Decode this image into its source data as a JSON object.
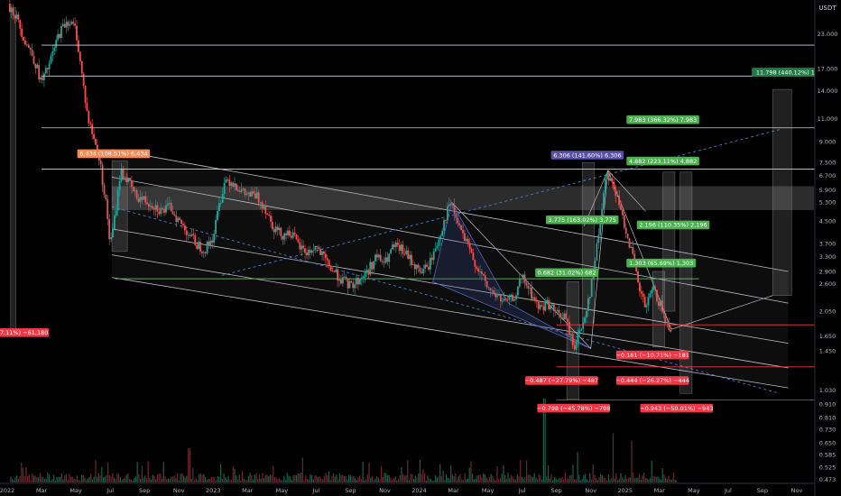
{
  "chart_data": {
    "type": "candlestick",
    "currency_label": "USDT",
    "y_scale": "log",
    "ylim": [
      0.46,
      30
    ],
    "y_ticks": [
      {
        "v": 23,
        "t": "23.000"
      },
      {
        "v": 17,
        "t": "17.000"
      },
      {
        "v": 14,
        "t": "14.000"
      },
      {
        "v": 11,
        "t": "11.000"
      },
      {
        "v": 9,
        "t": "9.000"
      },
      {
        "v": 7.5,
        "t": "7.500"
      },
      {
        "v": 6.7,
        "t": "6.700"
      },
      {
        "v": 5.9,
        "t": "5.900"
      },
      {
        "v": 5.3,
        "t": "5.300"
      },
      {
        "v": 4.5,
        "t": "4.500"
      },
      {
        "v": 3.7,
        "t": "3.700"
      },
      {
        "v": 3.3,
        "t": "3.300"
      },
      {
        "v": 2.9,
        "t": "2.900"
      },
      {
        "v": 2.6,
        "t": "2.600"
      },
      {
        "v": 2.05,
        "t": "2.050"
      },
      {
        "v": 1.65,
        "t": "1.650"
      },
      {
        "v": 1.45,
        "t": "1.450"
      },
      {
        "v": 1.03,
        "t": "1.030"
      },
      {
        "v": 0.91,
        "t": "0.910"
      },
      {
        "v": 0.81,
        "t": "0.810"
      },
      {
        "v": 0.73,
        "t": "0.730"
      },
      {
        "v": 0.65,
        "t": "0.650"
      },
      {
        "v": 0.585,
        "t": "0.585"
      },
      {
        "v": 0.525,
        "t": "0.525"
      },
      {
        "v": 0.473,
        "t": "0.473"
      }
    ],
    "x_ticks": [
      {
        "t": "2022",
        "m": 0
      },
      {
        "t": "Mar",
        "m": 2
      },
      {
        "t": "May",
        "m": 4
      },
      {
        "t": "Jul",
        "m": 6
      },
      {
        "t": "Sep",
        "m": 8
      },
      {
        "t": "Nov",
        "m": 10
      },
      {
        "t": "2023",
        "m": 12
      },
      {
        "t": "Mar",
        "m": 14
      },
      {
        "t": "May",
        "m": 16
      },
      {
        "t": "Jul",
        "m": 18
      },
      {
        "t": "Sep",
        "m": 20
      },
      {
        "t": "Nov",
        "m": 22
      },
      {
        "t": "2024",
        "m": 24
      },
      {
        "t": "Mar",
        "m": 26
      },
      {
        "t": "May",
        "m": 28
      },
      {
        "t": "Jul",
        "m": 30
      },
      {
        "t": "Sep",
        "m": 32
      },
      {
        "t": "Nov",
        "m": 34
      },
      {
        "t": "2025",
        "m": 36
      },
      {
        "t": "Mar",
        "m": 38
      },
      {
        "t": "May",
        "m": 40
      },
      {
        "t": "Jul",
        "m": 42
      },
      {
        "t": "Sep",
        "m": 44
      },
      {
        "t": "Nov",
        "m": 46
      }
    ],
    "price_path": [
      {
        "m": 0.0,
        "p": 30
      },
      {
        "m": 0.5,
        "p": 27
      },
      {
        "m": 1.0,
        "p": 22
      },
      {
        "m": 1.5,
        "p": 19
      },
      {
        "m": 2.0,
        "p": 15
      },
      {
        "m": 2.5,
        "p": 18
      },
      {
        "m": 3.0,
        "p": 23
      },
      {
        "m": 3.5,
        "p": 26
      },
      {
        "m": 4.0,
        "p": 24
      },
      {
        "m": 4.3,
        "p": 17
      },
      {
        "m": 4.7,
        "p": 11
      },
      {
        "m": 5.0,
        "p": 9.5
      },
      {
        "m": 5.4,
        "p": 7.5
      },
      {
        "m": 5.8,
        "p": 5.0
      },
      {
        "m": 6.0,
        "p": 3.6
      },
      {
        "m": 6.3,
        "p": 4.8
      },
      {
        "m": 6.6,
        "p": 7.0
      },
      {
        "m": 7.0,
        "p": 6.4
      },
      {
        "m": 7.5,
        "p": 5.6
      },
      {
        "m": 8.0,
        "p": 5.4
      },
      {
        "m": 8.5,
        "p": 5.2
      },
      {
        "m": 9.0,
        "p": 4.9
      },
      {
        "m": 9.5,
        "p": 5.1
      },
      {
        "m": 10.0,
        "p": 4.5
      },
      {
        "m": 10.5,
        "p": 4.1
      },
      {
        "m": 11.0,
        "p": 3.7
      },
      {
        "m": 11.5,
        "p": 3.5
      },
      {
        "m": 12.0,
        "p": 3.9
      },
      {
        "m": 12.3,
        "p": 5.0
      },
      {
        "m": 12.7,
        "p": 6.5
      },
      {
        "m": 13.2,
        "p": 6.3
      },
      {
        "m": 13.8,
        "p": 5.7
      },
      {
        "m": 14.5,
        "p": 5.6
      },
      {
        "m": 15.0,
        "p": 5.1
      },
      {
        "m": 15.5,
        "p": 4.3
      },
      {
        "m": 16.0,
        "p": 4.0
      },
      {
        "m": 16.5,
        "p": 4.1
      },
      {
        "m": 17.0,
        "p": 3.6
      },
      {
        "m": 17.5,
        "p": 3.4
      },
      {
        "m": 18.0,
        "p": 3.6
      },
      {
        "m": 18.5,
        "p": 3.2
      },
      {
        "m": 19.0,
        "p": 2.9
      },
      {
        "m": 19.5,
        "p": 2.7
      },
      {
        "m": 20.0,
        "p": 2.55
      },
      {
        "m": 20.5,
        "p": 2.7
      },
      {
        "m": 21.0,
        "p": 2.9
      },
      {
        "m": 21.5,
        "p": 3.3
      },
      {
        "m": 22.0,
        "p": 3.1
      },
      {
        "m": 22.5,
        "p": 3.6
      },
      {
        "m": 23.0,
        "p": 3.5
      },
      {
        "m": 23.5,
        "p": 3.2
      },
      {
        "m": 24.0,
        "p": 2.9
      },
      {
        "m": 24.5,
        "p": 3.0
      },
      {
        "m": 25.0,
        "p": 3.6
      },
      {
        "m": 25.5,
        "p": 4.6
      },
      {
        "m": 25.8,
        "p": 5.3
      },
      {
        "m": 26.2,
        "p": 4.5
      },
      {
        "m": 26.6,
        "p": 3.9
      },
      {
        "m": 27.0,
        "p": 3.4
      },
      {
        "m": 27.5,
        "p": 2.9
      },
      {
        "m": 28.0,
        "p": 2.5
      },
      {
        "m": 28.5,
        "p": 2.35
      },
      {
        "m": 29.0,
        "p": 2.2
      },
      {
        "m": 29.5,
        "p": 2.3
      },
      {
        "m": 30.0,
        "p": 2.75
      },
      {
        "m": 30.5,
        "p": 2.4
      },
      {
        "m": 31.0,
        "p": 2.1
      },
      {
        "m": 31.5,
        "p": 2.2
      },
      {
        "m": 32.0,
        "p": 2.0
      },
      {
        "m": 32.5,
        "p": 1.95
      },
      {
        "m": 33.0,
        "p": 1.5
      },
      {
        "m": 33.5,
        "p": 1.8
      },
      {
        "m": 34.0,
        "p": 2.5
      },
      {
        "m": 34.3,
        "p": 3.4
      },
      {
        "m": 34.6,
        "p": 4.8
      },
      {
        "m": 34.9,
        "p": 7.0
      },
      {
        "m": 35.3,
        "p": 6.2
      },
      {
        "m": 35.7,
        "p": 5.0
      },
      {
        "m": 36.0,
        "p": 4.3
      },
      {
        "m": 36.4,
        "p": 3.4
      },
      {
        "m": 36.8,
        "p": 2.5
      },
      {
        "m": 37.2,
        "p": 2.1
      },
      {
        "m": 37.6,
        "p": 2.5
      },
      {
        "m": 38.0,
        "p": 2.2
      },
      {
        "m": 38.4,
        "p": 1.85
      },
      {
        "m": 38.7,
        "p": 1.75
      }
    ],
    "volume_spikes": [
      {
        "m": 31.3,
        "v": 1.0
      },
      {
        "m": 35.3,
        "v": 0.55
      },
      {
        "m": 36.4,
        "v": 0.45
      },
      {
        "m": 10.6,
        "v": 0.35
      },
      {
        "m": 33.2,
        "v": 0.3
      }
    ],
    "horizontal_levels": [
      {
        "v": 20.876,
        "label": "20.876",
        "color": "#c9d3e0"
      },
      {
        "v": 15.95,
        "label": "15.950",
        "color": "#c9d3e0"
      },
      {
        "v": 10.15,
        "label": "10.150",
        "color": "#c9d3e0"
      },
      {
        "v": 7.077,
        "label": "7.077",
        "color": "#c9d3e0"
      },
      {
        "v": 1.82,
        "label": "1.820",
        "color": "#f23645"
      },
      {
        "v": 1.261,
        "label": "1.261",
        "color": "#f23645"
      },
      {
        "v": 0.945,
        "label": "0.945",
        "color": "#f23645"
      }
    ],
    "measure_tags": [
      {
        "text": "6.306 (141.60%) 6.306",
        "color": "#5b4fa8",
        "m": 33.8,
        "v": 8.0
      },
      {
        "text": "7.983 (366.32%) 7.983",
        "color": "#4caf50",
        "m": 38.2,
        "v": 10.9
      },
      {
        "text": "11.798 (440.12%) 1...",
        "color": "#1e7d46",
        "m": 45.5,
        "v": 16.5
      },
      {
        "text": "4.882 (223.11%) 4,882",
        "color": "#4caf50",
        "m": 38.2,
        "v": 7.6
      },
      {
        "text": "2.196 (110.35%) 2,196",
        "color": "#4caf50",
        "m": 38.8,
        "v": 4.35
      },
      {
        "text": "1.303 (65.69%) 1,303",
        "color": "#4caf50",
        "m": 38.1,
        "v": 3.12
      },
      {
        "text": "0.682 (31.02%) 682",
        "color": "#4caf50",
        "m": 32.6,
        "v": 2.87
      },
      {
        "text": "3.775 (163.02%) 3,775",
        "color": "#4caf50",
        "m": 33.5,
        "v": 4.55
      },
      {
        "text": "−0.487 (−27.79%) −487",
        "color": "#f23645",
        "m": 32.3,
        "v": 1.12
      },
      {
        "text": "−0.798 (−45.78%) −798",
        "color": "#f23645",
        "m": 33.0,
        "v": 0.88
      },
      {
        "text": "−0.181 (−10.71%) −181",
        "color": "#f23645",
        "m": 37.6,
        "v": 1.4
      },
      {
        "text": "−0.444 (−26.27%) −444",
        "color": "#f23645",
        "m": 37.6,
        "v": 1.12
      },
      {
        "text": "−0.943 (−50.01%) −943",
        "color": "#f23645",
        "m": 39.0,
        "v": 0.88
      },
      {
        "text": "6.434 (108.51%) 6,434",
        "color": "#f28b58",
        "m": 6.2,
        "v": 8.1
      },
      {
        "text": "0 (−87.11%) −61,180",
        "color": "#f23645",
        "m": 0.5,
        "v": 1.7
      }
    ]
  }
}
